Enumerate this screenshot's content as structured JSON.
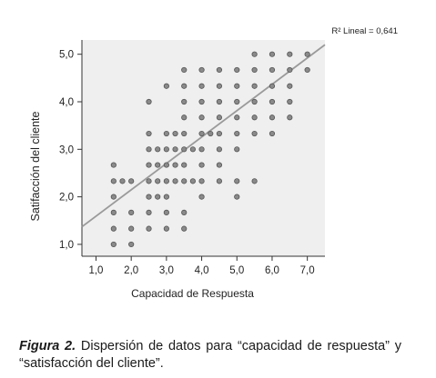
{
  "chart_data": {
    "type": "scatter",
    "xlabel": "Capacidad de Respuesta",
    "ylabel": "Satifacción del cliente",
    "xlim": [
      0.6,
      7.5
    ],
    "ylim": [
      0.75,
      5.3
    ],
    "x_ticks": [
      "1,0",
      "2,0",
      "3,0",
      "4,0",
      "5,0",
      "6,0",
      "7,0"
    ],
    "y_ticks": [
      "1,0",
      "2,0",
      "3,0",
      "4,0",
      "5,0"
    ],
    "x_tick_values": [
      1,
      2,
      3,
      4,
      5,
      6,
      7
    ],
    "y_tick_values": [
      1,
      2,
      3,
      4,
      5
    ],
    "fit_line": {
      "label": "R² Lineal = 0,641",
      "x": [
        0.6,
        7.5
      ],
      "y": [
        1.37,
        5.2
      ]
    },
    "points": [
      [
        1.5,
        1.0
      ],
      [
        2.0,
        1.0
      ],
      [
        1.5,
        1.33
      ],
      [
        2.0,
        1.33
      ],
      [
        2.5,
        1.33
      ],
      [
        3.0,
        1.33
      ],
      [
        3.5,
        1.33
      ],
      [
        1.5,
        1.67
      ],
      [
        2.0,
        1.67
      ],
      [
        2.5,
        1.67
      ],
      [
        3.0,
        1.67
      ],
      [
        3.5,
        1.67
      ],
      [
        1.5,
        2.0
      ],
      [
        2.5,
        2.0
      ],
      [
        2.75,
        2.0
      ],
      [
        3.0,
        2.0
      ],
      [
        4.0,
        2.0
      ],
      [
        5.0,
        2.0
      ],
      [
        1.5,
        2.33
      ],
      [
        1.75,
        2.33
      ],
      [
        2.0,
        2.33
      ],
      [
        2.5,
        2.33
      ],
      [
        2.75,
        2.33
      ],
      [
        3.0,
        2.33
      ],
      [
        3.25,
        2.33
      ],
      [
        3.5,
        2.33
      ],
      [
        3.75,
        2.33
      ],
      [
        4.0,
        2.33
      ],
      [
        4.5,
        2.33
      ],
      [
        5.0,
        2.33
      ],
      [
        5.5,
        2.33
      ],
      [
        1.5,
        2.67
      ],
      [
        2.5,
        2.67
      ],
      [
        2.75,
        2.67
      ],
      [
        3.0,
        2.67
      ],
      [
        3.25,
        2.67
      ],
      [
        3.5,
        2.67
      ],
      [
        4.0,
        2.67
      ],
      [
        4.5,
        2.67
      ],
      [
        2.5,
        3.0
      ],
      [
        2.75,
        3.0
      ],
      [
        3.0,
        3.0
      ],
      [
        3.25,
        3.0
      ],
      [
        3.5,
        3.0
      ],
      [
        3.75,
        3.0
      ],
      [
        4.0,
        3.0
      ],
      [
        4.5,
        3.0
      ],
      [
        5.0,
        3.0
      ],
      [
        2.5,
        3.33
      ],
      [
        3.0,
        3.33
      ],
      [
        3.25,
        3.33
      ],
      [
        3.5,
        3.33
      ],
      [
        4.0,
        3.33
      ],
      [
        4.25,
        3.33
      ],
      [
        4.5,
        3.33
      ],
      [
        5.0,
        3.33
      ],
      [
        5.5,
        3.33
      ],
      [
        6.0,
        3.33
      ],
      [
        3.5,
        3.67
      ],
      [
        4.0,
        3.67
      ],
      [
        4.5,
        3.67
      ],
      [
        5.0,
        3.67
      ],
      [
        5.5,
        3.67
      ],
      [
        6.0,
        3.67
      ],
      [
        6.5,
        3.67
      ],
      [
        2.5,
        4.0
      ],
      [
        3.5,
        4.0
      ],
      [
        4.0,
        4.0
      ],
      [
        4.5,
        4.0
      ],
      [
        5.0,
        4.0
      ],
      [
        5.5,
        4.0
      ],
      [
        6.0,
        4.0
      ],
      [
        6.5,
        4.0
      ],
      [
        3.0,
        4.33
      ],
      [
        3.5,
        4.33
      ],
      [
        4.0,
        4.33
      ],
      [
        4.5,
        4.33
      ],
      [
        5.0,
        4.33
      ],
      [
        5.5,
        4.33
      ],
      [
        6.0,
        4.33
      ],
      [
        6.5,
        4.33
      ],
      [
        3.5,
        4.67
      ],
      [
        4.0,
        4.67
      ],
      [
        4.5,
        4.67
      ],
      [
        5.0,
        4.67
      ],
      [
        5.5,
        4.67
      ],
      [
        6.0,
        4.67
      ],
      [
        6.5,
        4.67
      ],
      [
        7.0,
        4.67
      ],
      [
        5.5,
        5.0
      ],
      [
        6.0,
        5.0
      ],
      [
        6.5,
        5.0
      ],
      [
        7.0,
        5.0
      ]
    ]
  },
  "caption": {
    "label": "Figura 2.",
    "text": " Dispersión de datos para “capacidad de respuesta” y “satisfacción del cliente”."
  }
}
